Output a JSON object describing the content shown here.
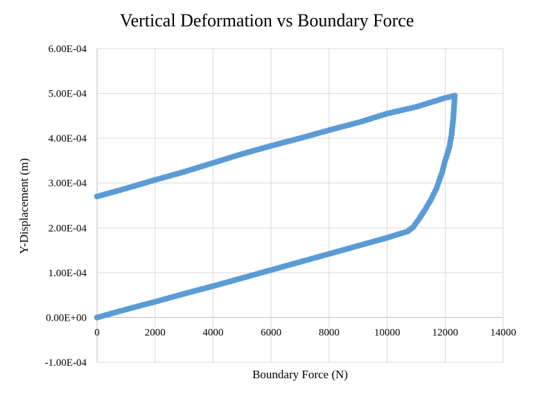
{
  "chart_data": {
    "type": "scatter",
    "title": "Vertical Deformation vs Boundary Force",
    "xlabel": "Boundary Force (N)",
    "ylabel": "Y-Displacement (m)",
    "xlim": [
      0,
      14000
    ],
    "ylim": [
      -0.0001,
      0.0006
    ],
    "x_ticks": [
      0,
      2000,
      4000,
      6000,
      8000,
      10000,
      12000,
      14000
    ],
    "x_tick_labels": [
      "0",
      "2000",
      "4000",
      "6000",
      "8000",
      "10000",
      "12000",
      "14000"
    ],
    "y_ticks": [
      -0.0001,
      0,
      0.0001,
      0.0002,
      0.0003,
      0.0004,
      0.0005,
      0.0006
    ],
    "y_tick_labels": [
      "-1.00E-04",
      "0.00E+00",
      "1.00E-04",
      "2.00E-04",
      "3.00E-04",
      "4.00E-04",
      "5.00E-04",
      "6.00E-04"
    ],
    "grid": true,
    "legend": "none",
    "series_color": "#5b9bd5",
    "series": [
      {
        "points": [
          [
            0,
            0
          ],
          [
            1000,
            1.8e-05
          ],
          [
            2000,
            3.5e-05
          ],
          [
            3000,
            5.3e-05
          ],
          [
            4000,
            7e-05
          ],
          [
            5000,
            8.8e-05
          ],
          [
            6000,
            0.000106
          ],
          [
            7000,
            0.000124
          ],
          [
            8000,
            0.000142
          ],
          [
            9000,
            0.00016
          ],
          [
            10000,
            0.000178
          ],
          [
            10700,
            0.000192
          ],
          [
            10900,
            0.000202
          ],
          [
            11100,
            0.00022
          ],
          [
            11300,
            0.00024
          ],
          [
            11500,
            0.000262
          ],
          [
            11700,
            0.000288
          ],
          [
            11900,
            0.000325
          ],
          [
            12000,
            0.00035
          ],
          [
            12100,
            0.00037
          ],
          [
            12150,
            0.000382
          ],
          [
            12220,
            0.000408
          ],
          [
            12280,
            0.000445
          ],
          [
            12330,
            0.000495
          ],
          [
            12000,
            0.00049
          ],
          [
            11000,
            0.00047
          ],
          [
            10000,
            0.000455
          ],
          [
            9000,
            0.000435
          ],
          [
            8000,
            0.000418
          ],
          [
            7000,
            0.0004
          ],
          [
            6000,
            0.000383
          ],
          [
            5000,
            0.000365
          ],
          [
            4000,
            0.000345
          ],
          [
            3000,
            0.000325
          ],
          [
            2000,
            0.000307
          ],
          [
            1000,
            0.000288
          ],
          [
            0,
            0.00027
          ]
        ]
      }
    ]
  }
}
